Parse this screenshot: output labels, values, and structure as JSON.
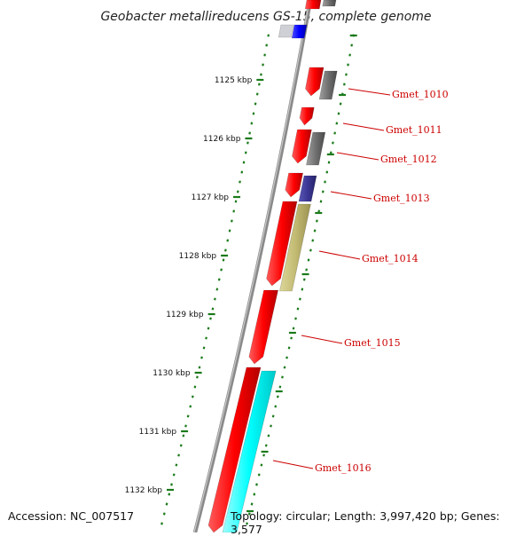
{
  "title": "Geobacter metallireducens GS-15, complete genome",
  "footer": {
    "accession": "Accession: NC_007517",
    "topology": "Topology: circular; Length: 3,997,420 bp; Genes: 3,577"
  },
  "scale": {
    "ticks": [
      {
        "label": "1125 kbp"
      },
      {
        "label": "1126 kbp"
      },
      {
        "label": "1127 kbp"
      },
      {
        "label": "1128 kbp"
      },
      {
        "label": "1129 kbp"
      },
      {
        "label": "1130 kbp"
      },
      {
        "label": "1131 kbp"
      },
      {
        "label": "1132 kbp"
      }
    ]
  },
  "genes": [
    {
      "label": "Gmet_1010"
    },
    {
      "label": "Gmet_1011"
    },
    {
      "label": "Gmet_1012"
    },
    {
      "label": "Gmet_1013"
    },
    {
      "label": "Gmet_1014"
    },
    {
      "label": "Gmet_1015"
    },
    {
      "label": "Gmet_1016"
    }
  ],
  "colors": {
    "cds": "#ff0000",
    "rna_gray": "#777777",
    "blue": "#0000ff",
    "indigo": "#3b3795",
    "olive": "#c3bb73",
    "cyan": "#00ffff",
    "backbone": "#888888",
    "tick": "#1a7a1a",
    "label": "#cc0000"
  }
}
